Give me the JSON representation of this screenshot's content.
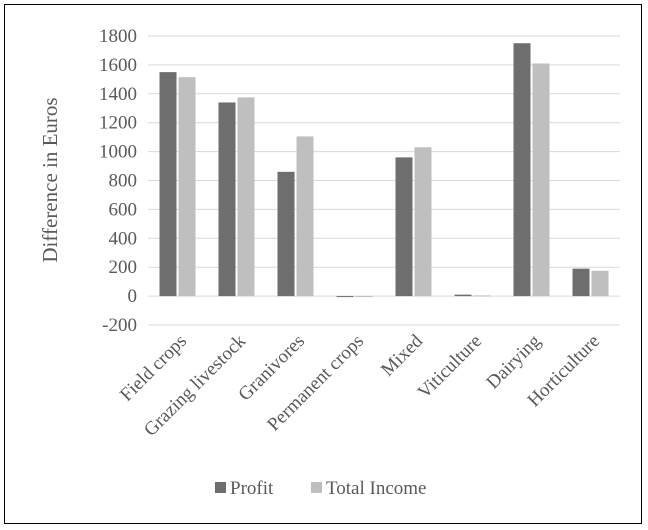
{
  "chart_data": {
    "type": "bar",
    "title": "",
    "xlabel": "",
    "ylabel": "Difference in Euros",
    "ylim": [
      -200,
      1800
    ],
    "yticks": [
      -200,
      0,
      200,
      400,
      600,
      800,
      1000,
      1200,
      1400,
      1600,
      1800
    ],
    "grid": true,
    "legend_position": "bottom",
    "categories": [
      "Field crops",
      "Grazing livestock",
      "Granivores",
      "Permanent crops",
      "Mixed",
      "Viticulture",
      "Dairying",
      "Horticulture"
    ],
    "series": [
      {
        "name": "Profit",
        "color": "#6e6e6e",
        "values": [
          1550,
          1340,
          860,
          -5,
          960,
          10,
          1750,
          190
        ]
      },
      {
        "name": "Total Income",
        "color": "#bfbfbf",
        "values": [
          1515,
          1375,
          1105,
          -5,
          1030,
          5,
          1610,
          175
        ]
      }
    ]
  }
}
